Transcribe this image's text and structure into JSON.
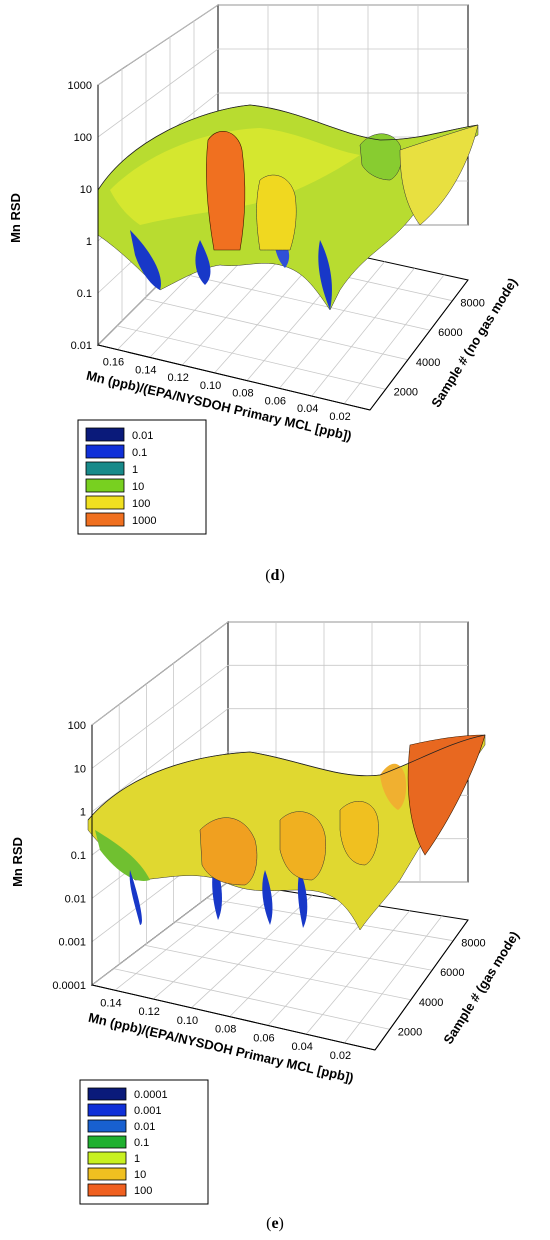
{
  "chart_data": [
    {
      "type": "surface3d",
      "panel_label": "d",
      "zlabel": "Mn RSD",
      "xlabel": "Mn (ppb)/(EPA/NYSDOH Primary MCL [ppb])",
      "ylabel": "Sample # (no gas mode)",
      "z_scale": "log",
      "z_ticks": [
        "1000",
        "100",
        "10",
        "1",
        "0.1",
        "0.01"
      ],
      "x_ticks": [
        "0.16",
        "0.14",
        "0.12",
        "0.10",
        "0.08",
        "0.06",
        "0.04",
        "0.02"
      ],
      "y_ticks": [
        "2000",
        "4000",
        "6000",
        "8000"
      ],
      "legend": [
        "0.01",
        "0.1",
        "1",
        "10",
        "100",
        "1000"
      ],
      "legend_colors": [
        "#0a1a7a",
        "#1030d8",
        "#188a8a",
        "#78d020",
        "#f0e020",
        "#f07020"
      ],
      "z_range": [
        0.01,
        1000
      ],
      "x_range": [
        0.17,
        0.0
      ],
      "y_range": [
        0,
        9000
      ]
    },
    {
      "type": "surface3d",
      "panel_label": "e",
      "zlabel": "Mn RSD",
      "xlabel": "Mn (ppb)/(EPA/NYSDOH Primary MCL [ppb])",
      "ylabel": "Sample # (gas mode)",
      "z_scale": "log",
      "z_ticks": [
        "100",
        "10",
        "1",
        "0.1",
        "0.01",
        "0.001",
        "0.0001"
      ],
      "x_ticks": [
        "0.14",
        "0.12",
        "0.10",
        "0.08",
        "0.06",
        "0.04",
        "0.02"
      ],
      "y_ticks": [
        "2000",
        "4000",
        "6000",
        "8000"
      ],
      "legend": [
        "0.0001",
        "0.001",
        "0.01",
        "0.1",
        "1",
        "10",
        "100"
      ],
      "legend_colors": [
        "#0a1a7a",
        "#1030d8",
        "#1860d0",
        "#20b030",
        "#c8f020",
        "#f0c020",
        "#f06020"
      ],
      "z_range": [
        0.0001,
        100
      ],
      "x_range": [
        0.15,
        0.0
      ],
      "y_range": [
        0,
        9000
      ]
    }
  ]
}
